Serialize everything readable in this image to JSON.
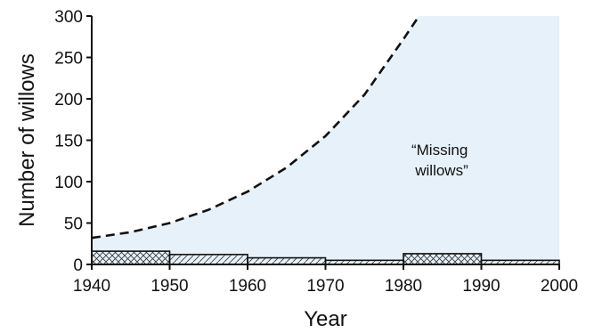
{
  "chart_data": {
    "type": "bar",
    "xlabel": "Year",
    "ylabel": "Number of willows",
    "xlim": [
      1940,
      2000
    ],
    "ylim": [
      0,
      300
    ],
    "x_ticks": [
      1940,
      1950,
      1960,
      1970,
      1980,
      1990,
      2000
    ],
    "y_ticks": [
      0,
      50,
      100,
      150,
      200,
      250,
      300
    ],
    "bars": [
      {
        "start": 1940,
        "end": 1950,
        "value": 16,
        "pattern": "crosshatch"
      },
      {
        "start": 1950,
        "end": 1960,
        "value": 12,
        "pattern": "hatch"
      },
      {
        "start": 1960,
        "end": 1970,
        "value": 8,
        "pattern": "hatch"
      },
      {
        "start": 1970,
        "end": 1980,
        "value": 5,
        "pattern": "hatch"
      },
      {
        "start": 1980,
        "end": 1990,
        "value": 13,
        "pattern": "crosshatch"
      },
      {
        "start": 1990,
        "end": 2000,
        "value": 5,
        "pattern": "hatch"
      }
    ],
    "expected_curve": {
      "style": "dashed",
      "x": [
        1940,
        1945,
        1950,
        1955,
        1960,
        1965,
        1970,
        1975,
        1980,
        1982
      ],
      "y": [
        32,
        39,
        50,
        66,
        88,
        117,
        155,
        205,
        272,
        300
      ]
    },
    "shaded_region": {
      "label": "“Missing willows”",
      "label_lines": [
        "“Missing",
        "willows”"
      ],
      "color": "#e6f1f9"
    },
    "grid": false,
    "legend": "none"
  }
}
